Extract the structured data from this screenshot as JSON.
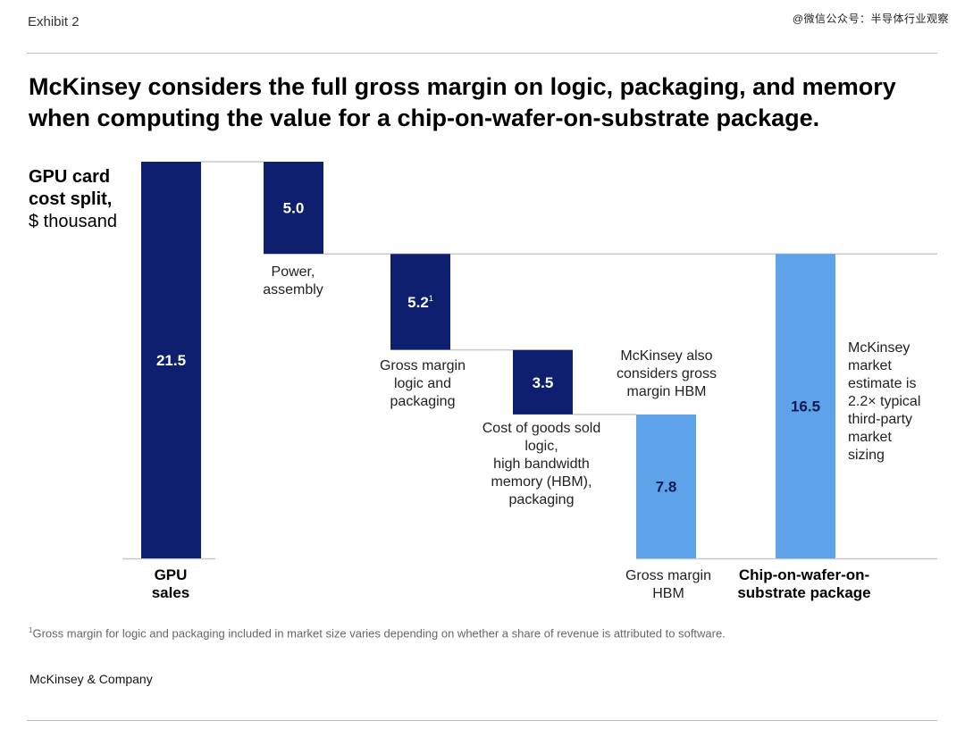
{
  "header": {
    "exhibit_label": "Exhibit 2",
    "watermark": "@微信公众号：半导体行业观察"
  },
  "title": "McKinsey considers the full gross margin on logic, packaging, and memory when computing the value for a chip-on-wafer-on-substrate package.",
  "unit_label": {
    "bold_line1": "GPU card",
    "bold_line2": "cost split,",
    "unit": "$ thousand"
  },
  "chart_data": {
    "type": "bar",
    "subtype": "waterfall",
    "title": "GPU card cost split, $ thousand",
    "ylabel": "$ thousand",
    "ylim": [
      0,
      21.5
    ],
    "grid": false,
    "colors": {
      "dark": "#0d1f6e",
      "light": "#5ea3ea",
      "connector": "#c8c8c8"
    },
    "bars": [
      {
        "id": "gpu-sales",
        "label": "GPU sales",
        "value": 21.5,
        "base": 0,
        "value_label": "21.5",
        "color": "dark",
        "label_bold": true,
        "label_position": "below-axis"
      },
      {
        "id": "power-assembly",
        "label": "Power, assembly",
        "value": 5.0,
        "base": 16.5,
        "value_label": "5.0",
        "color": "dark",
        "label_position": "below-bar"
      },
      {
        "id": "gross-margin-logic",
        "label": "Gross margin logic and packaging",
        "value": 5.2,
        "base": 11.3,
        "value_label": "5.2",
        "footnote_marker": "1",
        "color": "dark",
        "label_position": "below-bar"
      },
      {
        "id": "cogs",
        "label": "Cost of goods sold logic, high bandwidth memory (HBM), packaging",
        "value": 3.5,
        "base": 7.8,
        "value_label": "3.5",
        "color": "dark",
        "label_position": "below-bar"
      },
      {
        "id": "gross-margin-hbm",
        "label": "Gross margin HBM",
        "value": 7.8,
        "base": 0,
        "value_label": "7.8",
        "color": "light",
        "label_position": "below-axis"
      },
      {
        "id": "cowos",
        "label": "Chip-on-wafer-on-substrate package",
        "value": 16.5,
        "base": 0,
        "value_label": "16.5",
        "color": "light",
        "label_bold": true,
        "label_position": "below-axis"
      }
    ],
    "category_labels": {
      "gpu_sales": [
        "GPU",
        "sales"
      ],
      "power_assembly": [
        "Power,",
        "assembly"
      ],
      "gross_margin_logic": [
        "Gross margin",
        "logic and",
        "packaging"
      ],
      "cogs": [
        "Cost of goods sold",
        "logic,",
        "high bandwidth",
        "memory (HBM),",
        "packaging"
      ],
      "gross_margin_hbm": [
        "Gross margin",
        "HBM"
      ],
      "cowos": [
        "Chip-on-wafer-on-",
        "substrate package"
      ]
    },
    "annotations": {
      "hbm_note": [
        "McKinsey also",
        "considers gross",
        "margin HBM"
      ],
      "market_note": [
        "McKinsey",
        "market",
        "estimate is",
        "2.2× typical",
        "third-party",
        "market",
        "sizing"
      ]
    }
  },
  "footnote": {
    "marker": "1",
    "text": "Gross margin for logic and packaging included in market size varies depending on whether a share of revenue is attributed to software."
  },
  "brand": "McKinsey & Company"
}
